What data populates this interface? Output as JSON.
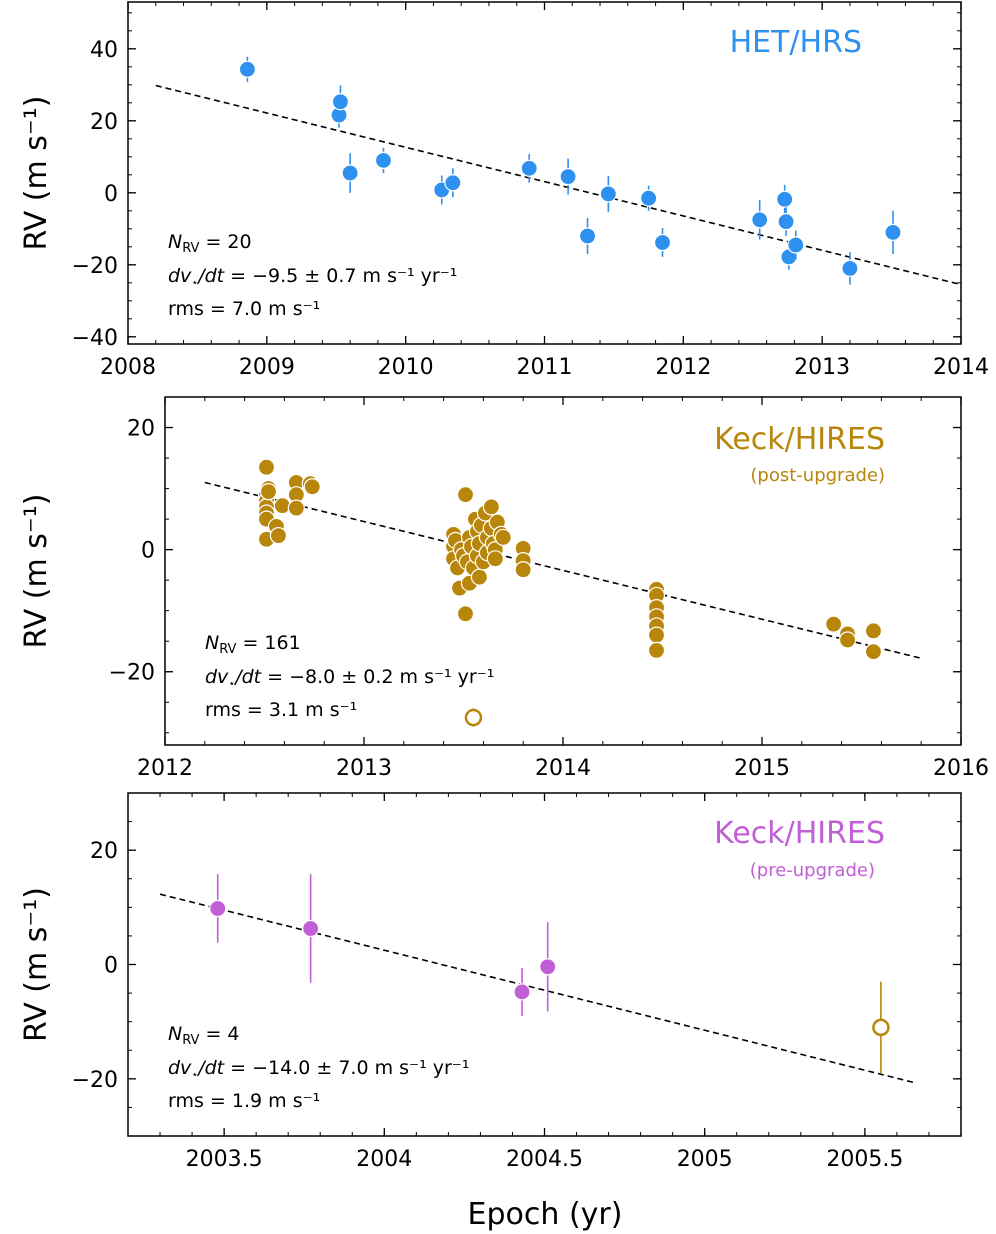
{
  "chart_data": [
    {
      "type": "scatter",
      "title": "",
      "label": "HET/HRS",
      "sublabel": "",
      "color": "#2e91f0",
      "xlabel": "",
      "ylabel": "RV (m s⁻¹)",
      "xlim": [
        2008,
        2014
      ],
      "ylim": [
        -42,
        53
      ],
      "xticks": [
        2008,
        2009,
        2010,
        2011,
        2012,
        2013,
        2014
      ],
      "xtick_labels": [
        "2008",
        "2009",
        "2010",
        "2011",
        "2012",
        "2013",
        "2014"
      ],
      "yticks": [
        -40,
        -20,
        0,
        20,
        40
      ],
      "ytick_labels": [
        "−40",
        "−20",
        "0",
        "20",
        "40"
      ],
      "trend_line": {
        "x": [
          2008.2,
          2014.0
        ],
        "y": [
          29.8,
          -25.5
        ]
      },
      "annotation": {
        "n_rv": "= 20",
        "slope": "= −9.5 ± 0.7 m s⁻¹ yr⁻¹",
        "rms": "rms = 7.0 m s⁻¹"
      },
      "points": [
        {
          "x": 2008.86,
          "y": 34.3,
          "err": 3.5,
          "open": false
        },
        {
          "x": 2009.52,
          "y": 21.6,
          "err": 3.5,
          "open": false
        },
        {
          "x": 2009.53,
          "y": 25.3,
          "err": 4.5,
          "open": false
        },
        {
          "x": 2009.6,
          "y": 5.5,
          "err": 5.5,
          "open": false
        },
        {
          "x": 2009.84,
          "y": 9.0,
          "err": 3.5,
          "open": false
        },
        {
          "x": 2010.26,
          "y": 0.8,
          "err": 4.0,
          "open": false
        },
        {
          "x": 2010.34,
          "y": 2.8,
          "err": 4.0,
          "open": false
        },
        {
          "x": 2010.89,
          "y": 6.8,
          "err": 4.0,
          "open": false
        },
        {
          "x": 2011.17,
          "y": 4.5,
          "err": 5.0,
          "open": false
        },
        {
          "x": 2011.31,
          "y": -12.0,
          "err": 5.0,
          "open": false
        },
        {
          "x": 2011.46,
          "y": -0.3,
          "err": 5.0,
          "open": false
        },
        {
          "x": 2011.75,
          "y": -1.5,
          "err": 3.5,
          "open": false
        },
        {
          "x": 2011.85,
          "y": -13.8,
          "err": 4.0,
          "open": false
        },
        {
          "x": 2012.55,
          "y": -7.5,
          "err": 5.5,
          "open": false
        },
        {
          "x": 2012.73,
          "y": -1.8,
          "err": 4.0,
          "open": false
        },
        {
          "x": 2012.74,
          "y": -8.0,
          "err": 4.0,
          "open": false
        },
        {
          "x": 2012.76,
          "y": -17.8,
          "err": 3.5,
          "open": false
        },
        {
          "x": 2012.81,
          "y": -14.5,
          "err": 4.0,
          "open": false
        },
        {
          "x": 2013.2,
          "y": -21.0,
          "err": 4.5,
          "open": false
        },
        {
          "x": 2013.51,
          "y": -11.0,
          "err": 6.0,
          "open": false
        }
      ]
    },
    {
      "type": "scatter",
      "title": "",
      "label": "Keck/HIRES",
      "sublabel": "(post-upgrade)",
      "color": "#b8860b",
      "xlabel": "",
      "ylabel": "RV (m s⁻¹)",
      "xlim": [
        2012,
        2016
      ],
      "ylim": [
        -32,
        25
      ],
      "xticks": [
        2012,
        2013,
        2014,
        2015,
        2016
      ],
      "xtick_labels": [
        "2012",
        "2013",
        "2014",
        "2015",
        "2016"
      ],
      "yticks": [
        -20,
        0,
        20
      ],
      "ytick_labels": [
        "−20",
        "0",
        "20"
      ],
      "trend_line": {
        "x": [
          2012.2,
          2015.8
        ],
        "y": [
          11.0,
          -17.8
        ]
      },
      "annotation": {
        "n_rv": "= 161",
        "slope": "= −8.0 ± 0.2 m s⁻¹ yr⁻¹",
        "rms": "rms = 3.1 m s⁻¹"
      },
      "points": [
        {
          "x": 2012.51,
          "y": 13.5,
          "err": 0,
          "open": false
        },
        {
          "x": 2012.51,
          "y": 9.0,
          "err": 0,
          "open": false
        },
        {
          "x": 2012.51,
          "y": 8.0,
          "err": 0,
          "open": false
        },
        {
          "x": 2012.51,
          "y": 7.0,
          "err": 0,
          "open": false
        },
        {
          "x": 2012.51,
          "y": 6.0,
          "err": 0,
          "open": false
        },
        {
          "x": 2012.51,
          "y": 5.0,
          "err": 0,
          "open": false
        },
        {
          "x": 2012.51,
          "y": 1.7,
          "err": 0,
          "open": false
        },
        {
          "x": 2012.52,
          "y": 10.0,
          "err": 0,
          "open": false
        },
        {
          "x": 2012.52,
          "y": 9.5,
          "err": 0,
          "open": false
        },
        {
          "x": 2012.56,
          "y": 3.8,
          "err": 0,
          "open": false
        },
        {
          "x": 2012.57,
          "y": 2.3,
          "err": 0,
          "open": false
        },
        {
          "x": 2012.59,
          "y": 7.2,
          "err": 0,
          "open": false
        },
        {
          "x": 2012.66,
          "y": 11.0,
          "err": 0,
          "open": false
        },
        {
          "x": 2012.66,
          "y": 9.0,
          "err": 0,
          "open": false
        },
        {
          "x": 2012.66,
          "y": 6.8,
          "err": 0,
          "open": false
        },
        {
          "x": 2012.73,
          "y": 10.8,
          "err": 0,
          "open": false
        },
        {
          "x": 2012.74,
          "y": 10.3,
          "err": 0,
          "open": false
        },
        {
          "x": 2013.45,
          "y": 2.5,
          "err": 0,
          "open": false
        },
        {
          "x": 2013.45,
          "y": 0.5,
          "err": 0,
          "open": false
        },
        {
          "x": 2013.45,
          "y": -1.5,
          "err": 0,
          "open": false
        },
        {
          "x": 2013.46,
          "y": 1.5,
          "err": 0,
          "open": false
        },
        {
          "x": 2013.47,
          "y": -3.0,
          "err": 0,
          "open": false
        },
        {
          "x": 2013.48,
          "y": -6.3,
          "err": 0,
          "open": false
        },
        {
          "x": 2013.49,
          "y": 0.0,
          "err": 0,
          "open": false
        },
        {
          "x": 2013.5,
          "y": -1.0,
          "err": 0,
          "open": false
        },
        {
          "x": 2013.51,
          "y": 9.0,
          "err": 0,
          "open": false
        },
        {
          "x": 2013.51,
          "y": -10.5,
          "err": 0,
          "open": false
        },
        {
          "x": 2013.52,
          "y": -2.0,
          "err": 0,
          "open": false
        },
        {
          "x": 2013.53,
          "y": 2.0,
          "err": 0,
          "open": false
        },
        {
          "x": 2013.53,
          "y": -5.5,
          "err": 0,
          "open": false
        },
        {
          "x": 2013.54,
          "y": 0.5,
          "err": 0,
          "open": false
        },
        {
          "x": 2013.55,
          "y": -3.0,
          "err": 0,
          "open": false
        },
        {
          "x": 2013.56,
          "y": 5.0,
          "err": 0,
          "open": false
        },
        {
          "x": 2013.57,
          "y": 3.0,
          "err": 0,
          "open": false
        },
        {
          "x": 2013.57,
          "y": -1.0,
          "err": 0,
          "open": false
        },
        {
          "x": 2013.58,
          "y": 1.0,
          "err": 0,
          "open": false
        },
        {
          "x": 2013.58,
          "y": -4.5,
          "err": 0,
          "open": false
        },
        {
          "x": 2013.59,
          "y": 4.0,
          "err": 0,
          "open": false
        },
        {
          "x": 2013.6,
          "y": -2.0,
          "err": 0,
          "open": false
        },
        {
          "x": 2013.61,
          "y": 6.0,
          "err": 0,
          "open": false
        },
        {
          "x": 2013.62,
          "y": 2.0,
          "err": 0,
          "open": false
        },
        {
          "x": 2013.62,
          "y": -0.5,
          "err": 0,
          "open": false
        },
        {
          "x": 2013.64,
          "y": 7.0,
          "err": 0,
          "open": false
        },
        {
          "x": 2013.64,
          "y": 3.5,
          "err": 0,
          "open": false
        },
        {
          "x": 2013.65,
          "y": 1.0,
          "err": 0,
          "open": false
        },
        {
          "x": 2013.66,
          "y": 0.0,
          "err": 0,
          "open": false
        },
        {
          "x": 2013.66,
          "y": -1.5,
          "err": 0,
          "open": false
        },
        {
          "x": 2013.67,
          "y": 4.5,
          "err": 0,
          "open": false
        },
        {
          "x": 2013.69,
          "y": 2.5,
          "err": 0,
          "open": false
        },
        {
          "x": 2013.7,
          "y": 2.0,
          "err": 0,
          "open": false
        },
        {
          "x": 2013.8,
          "y": 0.2,
          "err": 0,
          "open": false
        },
        {
          "x": 2013.8,
          "y": -1.8,
          "err": 0,
          "open": false
        },
        {
          "x": 2013.8,
          "y": -3.3,
          "err": 0,
          "open": false
        },
        {
          "x": 2014.47,
          "y": -6.5,
          "err": 0,
          "open": false
        },
        {
          "x": 2014.47,
          "y": -7.5,
          "err": 0,
          "open": false
        },
        {
          "x": 2014.47,
          "y": -9.5,
          "err": 0,
          "open": false
        },
        {
          "x": 2014.47,
          "y": -11.0,
          "err": 0,
          "open": false
        },
        {
          "x": 2014.47,
          "y": -12.5,
          "err": 0,
          "open": false
        },
        {
          "x": 2014.47,
          "y": -14.0,
          "err": 0,
          "open": false
        },
        {
          "x": 2014.47,
          "y": -16.5,
          "err": 0,
          "open": false
        },
        {
          "x": 2015.36,
          "y": -12.2,
          "err": 0,
          "open": false
        },
        {
          "x": 2015.43,
          "y": -13.8,
          "err": 0,
          "open": false
        },
        {
          "x": 2015.43,
          "y": -14.8,
          "err": 0,
          "open": false
        },
        {
          "x": 2015.56,
          "y": -13.3,
          "err": 0,
          "open": false
        },
        {
          "x": 2015.56,
          "y": -16.7,
          "err": 0,
          "open": false
        },
        {
          "x": 2013.55,
          "y": -27.5,
          "err": 1.5,
          "open": true
        }
      ]
    },
    {
      "type": "scatter",
      "title": "",
      "label": "Keck/HIRES",
      "sublabel": "(pre-upgrade)",
      "color": "#c25ed6",
      "xlabel": "Epoch (yr)",
      "ylabel": "RV (m s⁻¹)",
      "xlim": [
        2003.2,
        2005.8
      ],
      "ylim": [
        -30,
        30
      ],
      "xticks": [
        2003.5,
        2004,
        2004.5,
        2005,
        2005.5
      ],
      "xtick_labels": [
        "2003.5",
        "2004",
        "2004.5",
        "2005",
        "2005.5"
      ],
      "yticks": [
        -20,
        0,
        20
      ],
      "ytick_labels": [
        "−20",
        "0",
        "20"
      ],
      "trend_line": {
        "x": [
          2003.3,
          2005.65
        ],
        "y": [
          12.3,
          -20.6
        ]
      },
      "annotation": {
        "n_rv": "= 4",
        "slope": "= −14.0 ± 7.0 m s⁻¹ yr⁻¹",
        "rms": "rms = 1.9 m s⁻¹"
      },
      "points": [
        {
          "x": 2003.48,
          "y": 9.8,
          "err": 6.0,
          "open": false
        },
        {
          "x": 2003.77,
          "y": 6.3,
          "err": 9.5,
          "open": false
        },
        {
          "x": 2004.43,
          "y": -4.8,
          "err": 4.2,
          "open": false
        },
        {
          "x": 2004.51,
          "y": -0.4,
          "err": 7.8,
          "open": false
        },
        {
          "x": 2005.55,
          "y": -11.0,
          "err": 8.0,
          "open": true,
          "color": "#b8860b"
        }
      ]
    }
  ],
  "shared_xlabel": "Epoch (yr)"
}
